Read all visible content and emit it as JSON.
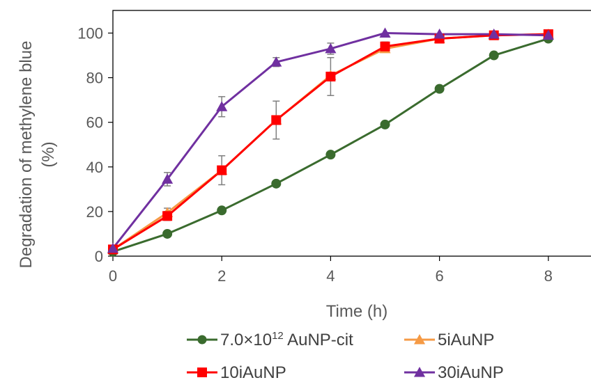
{
  "chart_data": {
    "type": "line",
    "xlabel": "Time (h)",
    "ylabel_line1": "Degradation  of methylene blue",
    "ylabel_line2": "(%)",
    "xlim": [
      0,
      8
    ],
    "ylim": [
      0,
      100
    ],
    "x_ticks": [
      "0",
      "2",
      "4",
      "6",
      "8"
    ],
    "y_ticks": [
      "0",
      "20",
      "40",
      "60",
      "80",
      "100"
    ],
    "grid": false,
    "legend_position": "bottom",
    "x": [
      0,
      1,
      2,
      3,
      4,
      5,
      6,
      7,
      8
    ],
    "series": [
      {
        "name": "7.0×10",
        "name_superscript": "12",
        "name_suffix": " AuNP-cit",
        "color": "#3a6b2e",
        "marker": "circle",
        "values": [
          2,
          10,
          20.5,
          32.5,
          45.5,
          59,
          75,
          90,
          97.5
        ],
        "errors": [
          0,
          0,
          0,
          0,
          0,
          0,
          0,
          0,
          0
        ]
      },
      {
        "name": "5iAuNP",
        "color": "#f59a45",
        "marker": "triangle",
        "values": [
          3,
          19.5,
          38.5,
          61,
          81,
          93,
          97.5,
          99,
          99.5
        ],
        "errors": [
          0,
          2,
          0,
          0,
          0,
          0,
          0,
          0,
          0
        ]
      },
      {
        "name": "10iAuNP",
        "color": "#ff0000",
        "marker": "square",
        "values": [
          3,
          18,
          38.5,
          61,
          80.5,
          94,
          97.5,
          99,
          99.5
        ],
        "errors": [
          0,
          2,
          6.5,
          8.5,
          8.5,
          2,
          1,
          0.5,
          0
        ]
      },
      {
        "name": "30iAuNP",
        "color": "#7030a0",
        "marker": "triangle",
        "values": [
          3.5,
          34.5,
          67,
          87,
          93,
          100,
          99.5,
          99.5,
          99
        ],
        "errors": [
          0,
          3,
          4.5,
          2,
          2.5,
          0,
          0,
          0,
          0
        ]
      }
    ]
  }
}
